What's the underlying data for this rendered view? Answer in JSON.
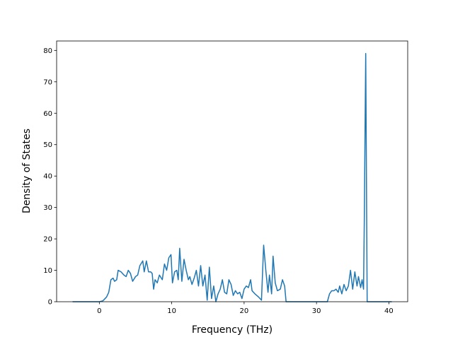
{
  "chart_data": {
    "type": "line",
    "xlabel": "Frequency (THz)",
    "ylabel": "Density of States",
    "x": [
      -3.7,
      0,
      0.5,
      1,
      1.3,
      1.6,
      1.9,
      2.1,
      2.4,
      2.6,
      3,
      3.4,
      3.7,
      4,
      4.3,
      4.6,
      5,
      5.3,
      5.6,
      6,
      6.2,
      6.5,
      6.8,
      7.1,
      7.3,
      7.5,
      7.7,
      8,
      8.3,
      8.7,
      9,
      9.3,
      9.6,
      9.9,
      10.1,
      10.4,
      10.7,
      10.9,
      11.1,
      11.4,
      11.7,
      12,
      12.3,
      12.5,
      12.8,
      13.1,
      13.4,
      13.7,
      14,
      14.3,
      14.6,
      14.9,
      15.2,
      15.5,
      15.8,
      16.1,
      16.4,
      16.7,
      17,
      17.3,
      17.6,
      17.9,
      18.2,
      18.5,
      18.8,
      19.1,
      19.4,
      19.7,
      20,
      20.3,
      20.6,
      20.9,
      21.1,
      21.5,
      22,
      22.4,
      22.7,
      23,
      23.3,
      23.5,
      23.8,
      24,
      24.3,
      24.6,
      25,
      25.3,
      25.6,
      25.8,
      31.5,
      31.8,
      32.1,
      32.4,
      32.7,
      33,
      33.2,
      33.5,
      33.8,
      34.1,
      34.4,
      34.7,
      35,
      35.3,
      35.6,
      35.8,
      36.1,
      36.3,
      36.5,
      36.6,
      36.8,
      37,
      40.4
    ],
    "series": [
      {
        "name": "DOS",
        "color": "#1f77b4",
        "values": [
          0,
          0,
          0.3,
          1.5,
          3,
          7,
          7.5,
          6.5,
          7,
          10,
          9.5,
          8.5,
          8,
          10,
          9,
          6.5,
          8,
          8.5,
          11.5,
          13,
          9.5,
          13,
          9.5,
          9.5,
          9,
          4,
          7,
          6,
          8.5,
          7,
          12,
          10,
          14,
          15,
          6,
          9.5,
          10,
          7,
          17,
          6.5,
          13.5,
          10,
          7,
          8,
          5.5,
          7.5,
          10,
          5,
          11.5,
          5,
          8.5,
          0.5,
          11,
          1,
          5,
          0,
          2.5,
          4,
          7,
          3,
          2.5,
          7,
          5.5,
          2,
          3.5,
          2.5,
          3,
          1,
          4,
          5,
          4.5,
          7,
          3.5,
          2.5,
          1.5,
          0.5,
          18,
          10,
          3,
          8.5,
          2.5,
          14.5,
          6,
          3.5,
          4,
          7,
          5,
          0,
          0,
          2.5,
          3.5,
          3.5,
          4,
          3,
          5,
          2.5,
          5.5,
          3.5,
          5,
          10,
          4,
          9.5,
          5,
          8,
          4.5,
          7,
          4,
          25,
          79,
          0,
          0
        ]
      }
    ],
    "xlim": [
      -5.9,
      42.6
    ],
    "ylim": [
      0,
      83
    ],
    "xticks": [
      0,
      10,
      20,
      30,
      40
    ],
    "yticks": [
      0,
      10,
      20,
      30,
      40,
      50,
      60,
      70,
      80
    ]
  }
}
